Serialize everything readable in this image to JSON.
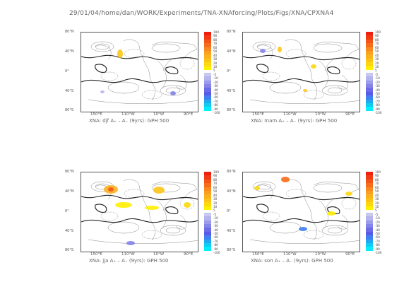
{
  "header": "29/01/04/home/dan/WORK/Experiments/TNA-XNAforcing/Plots/Figs/XNA/CPXNA4",
  "lat_labels": [
    "80°N",
    "40°N",
    "0°",
    "40°S",
    "80°S"
  ],
  "lon_labels": [
    "150°E",
    "110°W",
    "10°W",
    "90°E"
  ],
  "colorbar": {
    "labels": [
      "100",
      "90",
      "80",
      "70",
      "60",
      "50",
      "40",
      "30",
      "20",
      "10",
      "5",
      "-5",
      "-10",
      "-20",
      "-30",
      "-40",
      "-50",
      "-60",
      "-70",
      "-80",
      "-90",
      "-100"
    ],
    "warm_colors": [
      "#f02010",
      "#f23a14",
      "#f45418",
      "#f66e1c",
      "#f88a20",
      "#fa9f24",
      "#fbb21e",
      "#fcc516",
      "#fdd810",
      "#fff000"
    ],
    "cool_colors": [
      "#c8c8f0",
      "#b4b4ee",
      "#9c9cec",
      "#8484ea",
      "#6c6ce8",
      "#5a5ae6",
      "#4080f0",
      "#20a8f0",
      "#10ccf0",
      "#00eeff"
    ]
  },
  "panels": [
    {
      "season": "djf",
      "caption": "XNA: djf A₊ – A₋ (9yrs): GPH 500"
    },
    {
      "season": "mam",
      "caption": "XNA: mam A₊ – A₋ (9yrs): GPH 500"
    },
    {
      "season": "jja",
      "caption": "XNA: jja A₊ – A₋ (9yrs): GPH 500"
    },
    {
      "season": "son",
      "caption": "XNA: son A₊ – A₋ (9yrs): GPH 500"
    }
  ]
}
